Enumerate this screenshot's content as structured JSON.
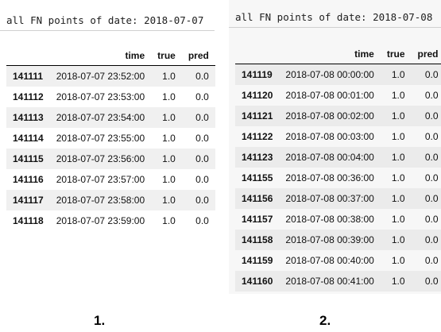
{
  "panel1": {
    "caption": "all FN points of date: 2018-07-07",
    "columns": [
      "",
      "time",
      "true",
      "pred"
    ],
    "rows": [
      [
        "141111",
        "2018-07-07 23:52:00",
        "1.0",
        "0.0"
      ],
      [
        "141112",
        "2018-07-07 23:53:00",
        "1.0",
        "0.0"
      ],
      [
        "141113",
        "2018-07-07 23:54:00",
        "1.0",
        "0.0"
      ],
      [
        "141114",
        "2018-07-07 23:55:00",
        "1.0",
        "0.0"
      ],
      [
        "141115",
        "2018-07-07 23:56:00",
        "1.0",
        "0.0"
      ],
      [
        "141116",
        "2018-07-07 23:57:00",
        "1.0",
        "0.0"
      ],
      [
        "141117",
        "2018-07-07 23:58:00",
        "1.0",
        "0.0"
      ],
      [
        "141118",
        "2018-07-07 23:59:00",
        "1.0",
        "0.0"
      ]
    ],
    "label": "1."
  },
  "panel2": {
    "caption": "all FN points of date: 2018-07-08",
    "columns": [
      "",
      "time",
      "true",
      "pred"
    ],
    "rows": [
      [
        "141119",
        "2018-07-08 00:00:00",
        "1.0",
        "0.0"
      ],
      [
        "141120",
        "2018-07-08 00:01:00",
        "1.0",
        "0.0"
      ],
      [
        "141121",
        "2018-07-08 00:02:00",
        "1.0",
        "0.0"
      ],
      [
        "141122",
        "2018-07-08 00:03:00",
        "1.0",
        "0.0"
      ],
      [
        "141123",
        "2018-07-08 00:04:00",
        "1.0",
        "0.0"
      ],
      [
        "141155",
        "2018-07-08 00:36:00",
        "1.0",
        "0.0"
      ],
      [
        "141156",
        "2018-07-08 00:37:00",
        "1.0",
        "0.0"
      ],
      [
        "141157",
        "2018-07-08 00:38:00",
        "1.0",
        "0.0"
      ],
      [
        "141158",
        "2018-07-08 00:39:00",
        "1.0",
        "0.0"
      ],
      [
        "141159",
        "2018-07-08 00:40:00",
        "1.0",
        "0.0"
      ],
      [
        "141160",
        "2018-07-08 00:41:00",
        "1.0",
        "0.0"
      ]
    ],
    "label": "2."
  }
}
